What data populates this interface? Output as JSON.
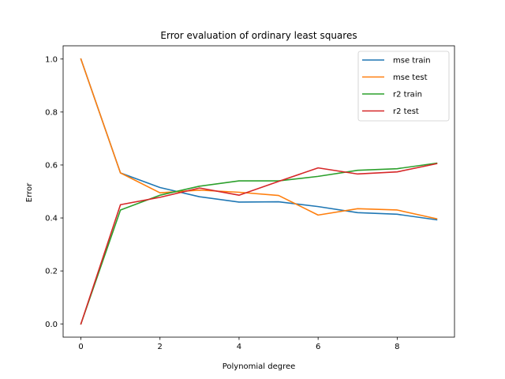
{
  "chart_data": {
    "type": "line",
    "title": "Error evaluation of ordinary least squares",
    "xlabel": "Polynomial degree",
    "ylabel": "Error",
    "xlim": [
      -0.45,
      9.45
    ],
    "ylim": [
      -0.05,
      1.05
    ],
    "xticks": [
      0,
      2,
      4,
      6,
      8
    ],
    "yticks": [
      0.0,
      0.2,
      0.4,
      0.6,
      0.8,
      1.0
    ],
    "xtick_labels": [
      "0",
      "2",
      "4",
      "6",
      "8"
    ],
    "ytick_labels": [
      "0.0",
      "0.2",
      "0.4",
      "0.6",
      "0.8",
      "1.0"
    ],
    "grid": false,
    "legend_position": "top-right",
    "x": [
      0,
      1,
      2,
      3,
      4,
      5,
      6,
      7,
      8,
      9
    ],
    "series": [
      {
        "name": "mse train",
        "color": "#1f77b4",
        "values": [
          1.0,
          0.57,
          0.515,
          0.48,
          0.46,
          0.461,
          0.443,
          0.42,
          0.414,
          0.393
        ]
      },
      {
        "name": "mse test",
        "color": "#ff7f0e",
        "values": [
          1.0,
          0.57,
          0.495,
          0.505,
          0.497,
          0.485,
          0.411,
          0.435,
          0.43,
          0.397
        ]
      },
      {
        "name": "r2 train",
        "color": "#2ca02c",
        "values": [
          0.0,
          0.43,
          0.486,
          0.52,
          0.54,
          0.54,
          0.557,
          0.58,
          0.586,
          0.607
        ]
      },
      {
        "name": "r2 test",
        "color": "#d62728",
        "values": [
          0.0,
          0.45,
          0.478,
          0.513,
          0.486,
          0.538,
          0.589,
          0.566,
          0.574,
          0.605
        ]
      }
    ]
  }
}
